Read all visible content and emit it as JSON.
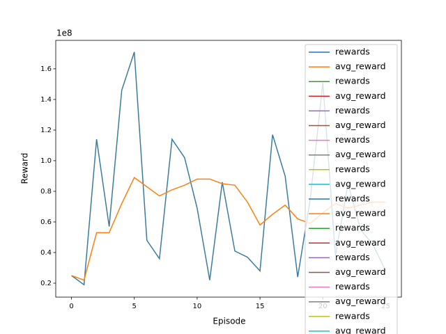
{
  "chart_data": {
    "type": "line",
    "x_label": "Episode",
    "y_label": "Reward",
    "y_offset_label": "1e8",
    "x": [
      0,
      1,
      2,
      3,
      4,
      5,
      6,
      7,
      8,
      9,
      10,
      11,
      12,
      13,
      14,
      15,
      16,
      17,
      18,
      19,
      20,
      21,
      22,
      23,
      24,
      25
    ],
    "series": [
      {
        "name": "rewards",
        "color": "#3a7ba0",
        "values": [
          0.25,
          0.19,
          1.14,
          0.57,
          1.46,
          1.71,
          0.48,
          0.36,
          1.14,
          1.02,
          0.69,
          0.22,
          0.86,
          0.41,
          0.37,
          0.28,
          1.17,
          0.9,
          0.24,
          0.75,
          1.51,
          0.38,
          0.85,
          0.55,
          0.45,
          0.28
        ]
      },
      {
        "name": "avg_reward",
        "color": "#ff7f0e",
        "values": [
          0.25,
          0.22,
          0.53,
          0.53,
          0.72,
          0.89,
          0.83,
          0.77,
          0.81,
          0.84,
          0.88,
          0.88,
          0.85,
          0.84,
          0.73,
          0.58,
          0.65,
          0.71,
          0.62,
          0.59,
          0.66,
          0.72,
          0.69,
          0.71,
          0.73,
          0.73
        ]
      }
    ],
    "legend": [
      {
        "name": "rewards",
        "color": "#1f77b4"
      },
      {
        "name": "avg_reward",
        "color": "#ff7f0e"
      },
      {
        "name": "rewards",
        "color": "#2ca02c"
      },
      {
        "name": "avg_reward",
        "color": "#d62728"
      },
      {
        "name": "rewards",
        "color": "#9467bd"
      },
      {
        "name": "avg_reward",
        "color": "#8c564b"
      },
      {
        "name": "rewards",
        "color": "#e377c2"
      },
      {
        "name": "avg_reward",
        "color": "#7f7f7f"
      },
      {
        "name": "rewards",
        "color": "#bcbd22"
      },
      {
        "name": "avg_reward",
        "color": "#17becf"
      },
      {
        "name": "rewards",
        "color": "#1f77b4"
      },
      {
        "name": "avg_reward",
        "color": "#ff7f0e"
      },
      {
        "name": "rewards",
        "color": "#2ca02c"
      },
      {
        "name": "avg_reward",
        "color": "#d62728"
      },
      {
        "name": "rewards",
        "color": "#9467bd"
      },
      {
        "name": "avg_reward",
        "color": "#8c564b"
      },
      {
        "name": "rewards",
        "color": "#e377c2"
      },
      {
        "name": "avg_reward",
        "color": "#7f7f7f"
      },
      {
        "name": "rewards",
        "color": "#bcbd22"
      },
      {
        "name": "avg_reward",
        "color": "#17becf"
      }
    ],
    "legend_position": "upper right",
    "xlim": [
      -1.25,
      26.25
    ],
    "xticks": [
      0,
      5,
      10,
      15,
      20,
      25
    ],
    "ylim": [
      0.109,
      1.786
    ],
    "yticks": [
      {
        "value": 0.2,
        "label": "0.2"
      },
      {
        "value": 0.4,
        "label": "0.4"
      },
      {
        "value": 0.6,
        "label": "0.6"
      },
      {
        "value": 0.8,
        "label": "0.8"
      },
      {
        "value": 1.0,
        "label": "1.0"
      },
      {
        "value": 1.2,
        "label": "1.2"
      },
      {
        "value": 1.4,
        "label": "1.4"
      },
      {
        "value": 1.6,
        "label": "1.6"
      }
    ],
    "grid": false
  }
}
